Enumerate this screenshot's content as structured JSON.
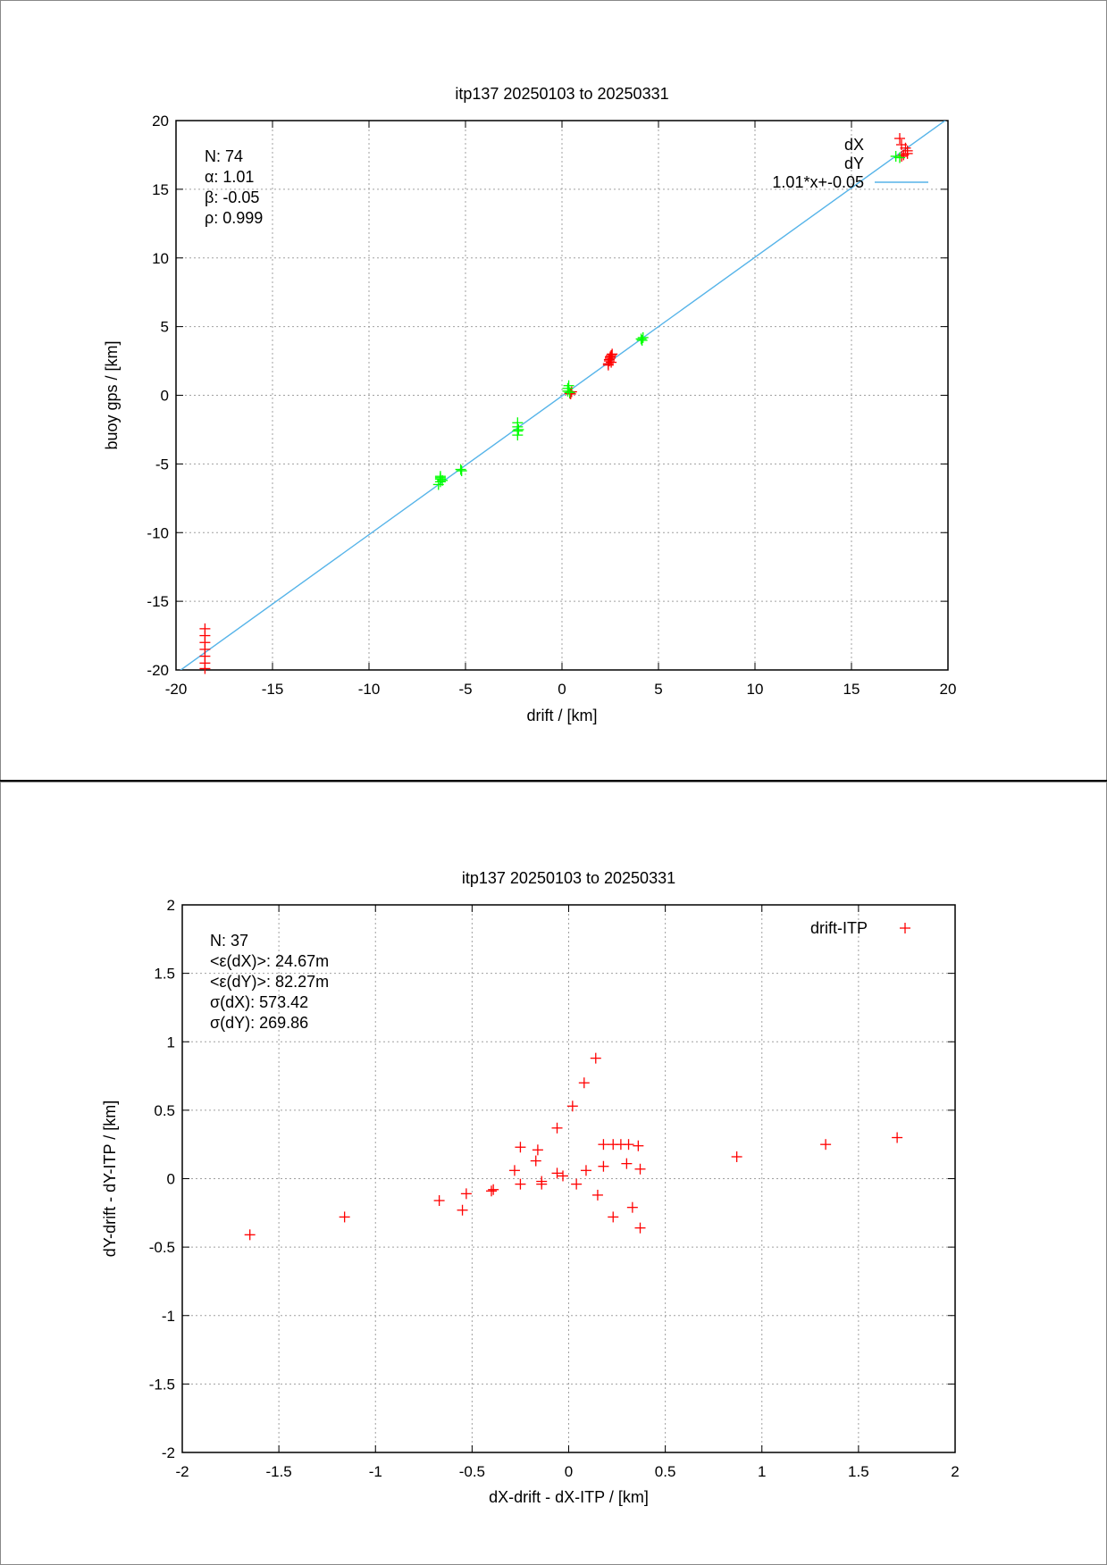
{
  "chart_data": [
    {
      "type": "scatter",
      "title": "itp137 20250103 to 20250331",
      "xlabel": "drift / [km]",
      "ylabel": "buoy gps / [km]",
      "xlim": [
        -20,
        20
      ],
      "ylim": [
        -20,
        20
      ],
      "xticks": [
        -20,
        -15,
        -10,
        -5,
        0,
        5,
        10,
        15,
        20
      ],
      "yticks": [
        -20,
        -15,
        -10,
        -5,
        0,
        5,
        10,
        15,
        20
      ],
      "grid": true,
      "legend_position": "top-right",
      "stats": [
        "N: 74",
        "α: 1.01",
        "β: -0.05",
        "ρ: 0.999"
      ],
      "fit": {
        "label": "1.01*x+-0.05",
        "slope": 1.01,
        "intercept": -0.05,
        "color": "#56b4e9"
      },
      "series": [
        {
          "name": "dX",
          "color": "#ff0000",
          "marker": "plus",
          "points": [
            [
              -18.5,
              -17.0
            ],
            [
              -18.5,
              -17.5
            ],
            [
              -18.5,
              -18.0
            ],
            [
              -18.5,
              -18.5
            ],
            [
              -18.5,
              -19.0
            ],
            [
              -18.5,
              -19.5
            ],
            [
              -18.5,
              -19.9
            ],
            [
              2.4,
              2.3
            ],
            [
              2.45,
              2.5
            ],
            [
              2.5,
              2.7
            ],
            [
              2.55,
              2.9
            ],
            [
              2.6,
              3.0
            ],
            [
              2.45,
              2.6
            ],
            [
              2.5,
              2.8
            ],
            [
              2.4,
              2.2
            ],
            [
              2.55,
              2.4
            ],
            [
              0.4,
              0.15
            ],
            [
              0.5,
              0.25
            ],
            [
              0.45,
              0.1
            ],
            [
              17.5,
              18.7
            ],
            [
              17.8,
              18.0
            ],
            [
              17.9,
              17.8
            ],
            [
              17.7,
              17.5
            ],
            [
              17.9,
              17.6
            ],
            [
              17.6,
              17.4
            ]
          ]
        },
        {
          "name": "dY",
          "color": "#00ff00",
          "marker": "plus",
          "points": [
            [
              -6.3,
              -5.9
            ],
            [
              -6.3,
              -6.1
            ],
            [
              -6.3,
              -6.3
            ],
            [
              -6.4,
              -6.5
            ],
            [
              -6.2,
              -6.2
            ],
            [
              -6.3,
              -6.0
            ],
            [
              -5.2,
              -5.5
            ],
            [
              -5.25,
              -5.4
            ],
            [
              -2.3,
              -2.0
            ],
            [
              -2.3,
              -2.3
            ],
            [
              -2.3,
              -2.6
            ],
            [
              -2.3,
              -2.9
            ],
            [
              -2.25,
              -2.5
            ],
            [
              0.3,
              0.5
            ],
            [
              0.35,
              0.7
            ],
            [
              0.3,
              0.3
            ],
            [
              0.4,
              0.2
            ],
            [
              4.1,
              4.1
            ],
            [
              4.2,
              4.2
            ],
            [
              4.15,
              4.0
            ],
            [
              17.5,
              17.3
            ],
            [
              17.3,
              17.4
            ]
          ]
        }
      ]
    },
    {
      "type": "scatter",
      "title": "itp137 20250103 to 20250331",
      "xlabel": "dX-drift - dX-ITP / [km]",
      "ylabel": "dY-drift - dY-ITP / [km]",
      "xlim": [
        -2,
        2
      ],
      "ylim": [
        -2,
        2
      ],
      "xticks": [
        -2,
        -1.5,
        -1,
        -0.5,
        0,
        0.5,
        1,
        1.5,
        2
      ],
      "yticks": [
        -2,
        -1.5,
        -1,
        -0.5,
        0,
        0.5,
        1,
        1.5,
        2
      ],
      "grid": true,
      "legend_position": "top-right",
      "stats": [
        "N: 37",
        "<ε(dX)>:  24.67m",
        "<ε(dY)>: 82.27m",
        "σ(dX):  573.42",
        "σ(dY):  269.86"
      ],
      "series": [
        {
          "name": "drift-ITP",
          "color": "#ff0000",
          "marker": "plus",
          "points": [
            [
              -1.65,
              -0.41
            ],
            [
              -1.16,
              -0.28
            ],
            [
              -0.67,
              -0.16
            ],
            [
              -0.55,
              -0.23
            ],
            [
              -0.53,
              -0.11
            ],
            [
              -0.4,
              -0.09
            ],
            [
              -0.39,
              -0.08
            ],
            [
              -0.28,
              0.06
            ],
            [
              -0.25,
              0.23
            ],
            [
              -0.25,
              -0.04
            ],
            [
              -0.16,
              0.21
            ],
            [
              -0.17,
              0.13
            ],
            [
              -0.14,
              -0.02
            ],
            [
              -0.14,
              -0.04
            ],
            [
              -0.06,
              0.37
            ],
            [
              -0.06,
              0.04
            ],
            [
              -0.03,
              0.02
            ],
            [
              0.02,
              0.53
            ],
            [
              0.04,
              -0.04
            ],
            [
              0.08,
              0.7
            ],
            [
              0.09,
              0.06
            ],
            [
              0.14,
              0.88
            ],
            [
              0.15,
              -0.12
            ],
            [
              0.18,
              0.25
            ],
            [
              0.18,
              0.09
            ],
            [
              0.23,
              0.25
            ],
            [
              0.23,
              -0.28
            ],
            [
              0.27,
              0.25
            ],
            [
              0.3,
              0.11
            ],
            [
              0.31,
              0.25
            ],
            [
              0.33,
              -0.21
            ],
            [
              0.36,
              0.24
            ],
            [
              0.37,
              0.07
            ],
            [
              0.37,
              -0.36
            ],
            [
              0.87,
              0.16
            ],
            [
              1.33,
              0.25
            ],
            [
              1.7,
              0.3
            ]
          ]
        }
      ]
    }
  ]
}
